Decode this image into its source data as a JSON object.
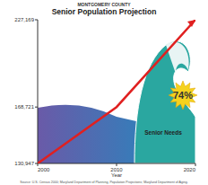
{
  "chart_data": {
    "type": "line",
    "subtitle": "MONTGOMERY COUNTY",
    "title": "Senior Population Projection",
    "x_label": "Year",
    "x": [
      2000,
      2010,
      2020
    ],
    "values": [
      130947,
      168721,
      227169
    ],
    "color": "#e02020",
    "xlim": [
      2000,
      2020
    ],
    "xticks": [
      2000,
      2010,
      2020
    ],
    "ylim": [
      130947,
      227169
    ],
    "yticks": [
      {
        "value": 130947,
        "label": "130,947"
      },
      {
        "value": 168721,
        "label": "168,721"
      },
      {
        "value": 227169,
        "label": "227,169"
      }
    ],
    "annotations": [
      "Senior Needs",
      "74%"
    ],
    "source": "Source: U.S. Census 2000; Maryland Department of Planning, Population Projections; Maryland Department of Aging."
  }
}
